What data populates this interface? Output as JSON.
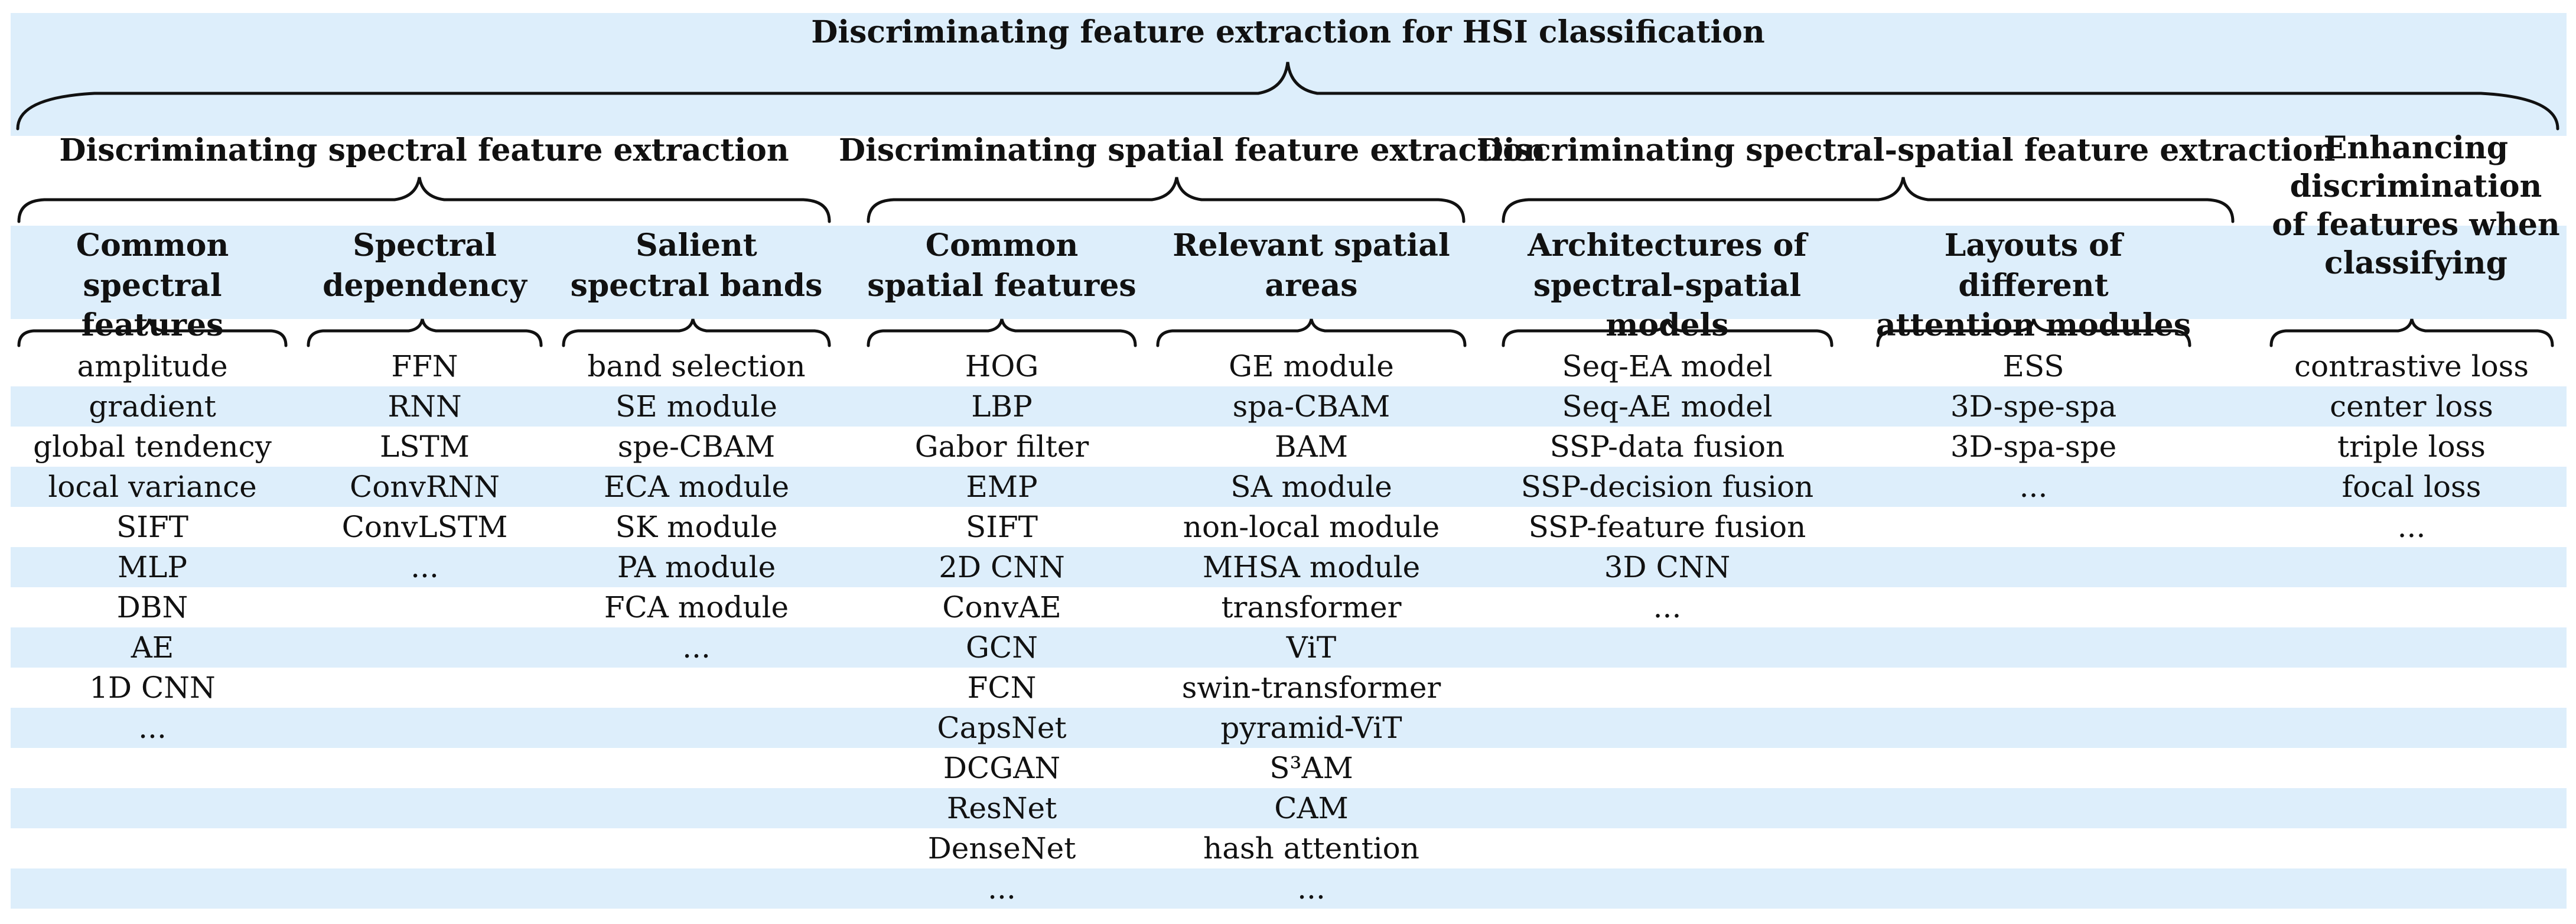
{
  "title": "Discriminating feature extraction for  HSI classification",
  "sections": [
    "Discriminating spectral feature extraction",
    "Discriminating spatial feature extraction",
    "Discriminating spectral-spatial feature extraction",
    "Enhancing discrimination of features when classifying"
  ],
  "columns": [
    {
      "header": "Common spectral features",
      "items": [
        "amplitude",
        "gradient",
        "global tendency",
        "local variance",
        "SIFT",
        "MLP",
        "DBN",
        "AE",
        "1D CNN",
        "..."
      ]
    },
    {
      "header": "Spectral dependency",
      "items": [
        "FFN",
        "RNN",
        "LSTM",
        "ConvRNN",
        "ConvLSTM",
        "..."
      ]
    },
    {
      "header": "Salient spectral bands",
      "items": [
        "band selection",
        "SE module",
        "spe-CBAM",
        "ECA module",
        "SK module",
        "PA module",
        "FCA module",
        "..."
      ]
    },
    {
      "header": "Common spatial features",
      "items": [
        "HOG",
        "LBP",
        "Gabor filter",
        "EMP",
        "SIFT",
        "2D CNN",
        "ConvAE",
        "GCN",
        "FCN",
        "CapsNet",
        "DCGAN",
        "ResNet",
        "DenseNet",
        "..."
      ]
    },
    {
      "header": "Relevant spatial areas",
      "items": [
        "GE module",
        "spa-CBAM",
        "BAM",
        "SA module",
        "non-local module",
        "MHSA module",
        "transformer",
        "ViT",
        "swin-transformer",
        "pyramid-ViT",
        "S³AM",
        "CAM",
        "hash attention",
        "..."
      ]
    },
    {
      "header": "Architectures of spectral-spatial models",
      "items": [
        "Seq-EA model",
        "Seq-AE model",
        "SSP-data fusion",
        "SSP-decision fusion",
        "SSP-feature fusion",
        "3D CNN",
        "..."
      ]
    },
    {
      "header": "Layouts of different attention modules",
      "items": [
        "ESS",
        "3D-spe-spa",
        "3D-spa-spe",
        "..."
      ]
    },
    {
      "header": "",
      "items": [
        "contrastive loss",
        "center loss",
        "triple loss",
        "focal loss",
        "..."
      ]
    }
  ],
  "colors": {
    "band": "#ddeefb",
    "line": "#111111"
  }
}
